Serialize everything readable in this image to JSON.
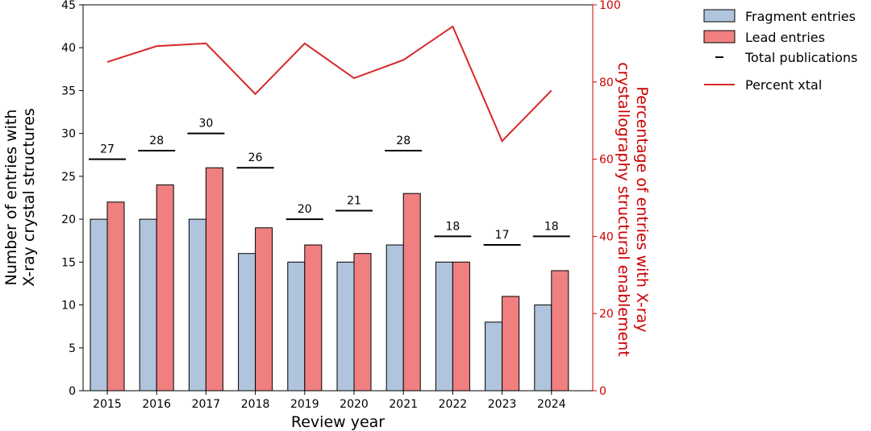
{
  "chart_data": {
    "type": "bar",
    "categories": [
      "2015",
      "2016",
      "2017",
      "2018",
      "2019",
      "2020",
      "2021",
      "2022",
      "2023",
      "2024"
    ],
    "series": [
      {
        "name": "Fragment entries",
        "kind": "bar",
        "axis": "left",
        "color": "#b0c4de",
        "values": [
          20,
          20,
          20,
          16,
          15,
          15,
          17,
          15,
          8,
          10
        ]
      },
      {
        "name": "Lead entries",
        "kind": "bar",
        "axis": "left",
        "color": "#f08080",
        "values": [
          22,
          24,
          26,
          19,
          17,
          16,
          23,
          15,
          11,
          14
        ]
      },
      {
        "name": "Total publications",
        "kind": "marker",
        "axis": "left",
        "color": "#000000",
        "values": [
          27,
          28,
          30,
          26,
          20,
          21,
          28,
          18,
          17,
          18
        ]
      },
      {
        "name": "Percent xtal",
        "kind": "line",
        "axis": "right",
        "color": "#d62728",
        "values": [
          85.2,
          89.3,
          90.0,
          76.9,
          90.0,
          81.0,
          85.7,
          94.4,
          64.7,
          77.8
        ]
      }
    ],
    "xlabel": "Review year",
    "ylabel": "Number of entries with\nX-ray crystal structures",
    "y2label": "Percentage of entries with X-ray\ncrystallography structural enablement",
    "ylim": [
      0,
      45
    ],
    "y2lim": [
      0,
      100
    ],
    "yticks": [
      0,
      5,
      10,
      15,
      20,
      25,
      30,
      35,
      40,
      45
    ],
    "y2ticks": [
      0,
      20,
      40,
      60,
      80,
      100
    ],
    "y2color": "#cc0000",
    "legend_position": "upper-right-outside",
    "grid": false
  }
}
